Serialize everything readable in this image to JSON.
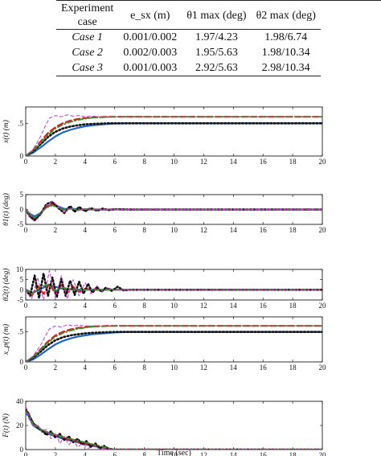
{
  "table": {
    "headers": [
      [
        "Experiment",
        "case"
      ],
      [
        "e_sx (m)"
      ],
      [
        "θ1 max (deg)"
      ],
      [
        "θ2 max (deg)"
      ]
    ],
    "rows": [
      {
        "case": "Case 1",
        "esx": "0.001/0.002",
        "t1": "1.97/4.23",
        "t2": "1.98/6.74"
      },
      {
        "case": "Case 2",
        "esx": "0.002/0.003",
        "t1": "1.95/5.63",
        "t2": "1.98/10.34"
      },
      {
        "case": "Case 3",
        "esx": "0.001/0.003",
        "t1": "2.92/5.63",
        "t2": "2.98/10.34"
      }
    ]
  },
  "chart_data": {
    "type": "line",
    "xlabel": "Time (sec)",
    "xlim": [
      0,
      20
    ],
    "xticks": [
      0,
      2,
      4,
      6,
      8,
      10,
      12,
      14,
      16,
      18,
      20
    ],
    "series_styles": [
      {
        "color": "#1f66c9",
        "dash": "solid",
        "width": 2.2
      },
      {
        "color": "#d81b1b",
        "dash": "7,4",
        "width": 2.2
      },
      {
        "color": "#111111",
        "dash": "1.6,2.8",
        "width": 2.6
      },
      {
        "color": "#3a8f2c",
        "dash": "6,3,1.5,3",
        "width": 1.8
      },
      {
        "color": "#c53cc5",
        "dash": "4,3",
        "width": 1.0
      }
    ],
    "subplots": [
      {
        "ylabel": "x(t) (m)",
        "ylim": [
          0,
          0.75
        ],
        "yticks": [
          0,
          0.5
        ],
        "series": [
          {
            "x": [
              0,
              0.5,
              1,
              1.5,
              2,
              2.5,
              3,
              3.5,
              4,
              4.5,
              5,
              5.5,
              6,
              7,
              8,
              20
            ],
            "y": [
              0,
              0.05,
              0.13,
              0.22,
              0.3,
              0.36,
              0.4,
              0.43,
              0.455,
              0.47,
              0.48,
              0.49,
              0.495,
              0.5,
              0.5,
              0.5
            ]
          },
          {
            "x": [
              0,
              0.5,
              1,
              1.5,
              2,
              2.5,
              3,
              3.5,
              4,
              4.5,
              5,
              5.5,
              6,
              7,
              8,
              20
            ],
            "y": [
              0,
              0.09,
              0.22,
              0.35,
              0.44,
              0.5,
              0.54,
              0.565,
              0.58,
              0.59,
              0.595,
              0.6,
              0.6,
              0.6,
              0.6,
              0.6
            ]
          },
          {
            "x": [
              0,
              0.5,
              1,
              1.5,
              2,
              2.5,
              3,
              3.5,
              4,
              4.5,
              5,
              5.5,
              6,
              7,
              8,
              20
            ],
            "y": [
              0,
              0.07,
              0.18,
              0.29,
              0.37,
              0.42,
              0.45,
              0.47,
              0.485,
              0.49,
              0.495,
              0.5,
              0.5,
              0.5,
              0.5,
              0.5
            ]
          },
          {
            "x": [
              0,
              0.5,
              1,
              1.5,
              2,
              2.5,
              3,
              3.5,
              4,
              4.5,
              5,
              5.5,
              6,
              7,
              8,
              20
            ],
            "y": [
              0,
              0.08,
              0.2,
              0.32,
              0.42,
              0.48,
              0.52,
              0.55,
              0.57,
              0.585,
              0.59,
              0.595,
              0.6,
              0.6,
              0.6,
              0.6
            ]
          },
          {
            "x": [
              0,
              0.5,
              1,
              1.3,
              1.6,
              2,
              2.4,
              2.8,
              3.2,
              3.6,
              4,
              4.5,
              5,
              6,
              7,
              20
            ],
            "y": [
              0,
              0.1,
              0.3,
              0.45,
              0.58,
              0.62,
              0.6,
              0.63,
              0.61,
              0.62,
              0.6,
              0.61,
              0.6,
              0.6,
              0.6,
              0.6
            ]
          }
        ]
      },
      {
        "ylabel": "θ1(t) (deg)",
        "ylim": [
          -5,
          5
        ],
        "yticks": [
          -5,
          0,
          5
        ],
        "series": [
          {
            "x": [
              0,
              0.3,
              0.6,
              1,
              1.4,
              1.8,
              2.2,
              2.6,
              3,
              3.5,
              4,
              5,
              6,
              20
            ],
            "y": [
              0,
              -1.5,
              -2.3,
              -1.2,
              0.8,
              1.8,
              1.0,
              0.2,
              0.3,
              0.1,
              0,
              0,
              0,
              0
            ]
          },
          {
            "x": [
              0,
              0.3,
              0.6,
              1,
              1.4,
              1.8,
              2.2,
              2.6,
              3,
              3.5,
              4,
              5,
              6,
              20
            ],
            "y": [
              0,
              -2.0,
              -3.2,
              -1.5,
              1.0,
              2.0,
              0.8,
              -0.4,
              0.5,
              -0.2,
              0.1,
              0,
              0,
              0
            ]
          },
          {
            "x": [
              0,
              0.3,
              0.6,
              1,
              1.4,
              1.8,
              2.2,
              2.6,
              3,
              3.3,
              3.6,
              4,
              4.4,
              4.8,
              5.2,
              5.6,
              6,
              7,
              20
            ],
            "y": [
              0,
              -2.5,
              -3.6,
              -1.5,
              1.8,
              2.6,
              0.5,
              -1.2,
              1.2,
              -0.8,
              0.9,
              -0.6,
              0.5,
              -0.4,
              0.3,
              -0.2,
              0.1,
              0,
              0
            ]
          },
          {
            "x": [
              0,
              0.3,
              0.6,
              1,
              1.4,
              1.8,
              2.2,
              2.6,
              3,
              3.5,
              4,
              5,
              6,
              20
            ],
            "y": [
              0,
              -1.8,
              -2.8,
              -1.2,
              0.6,
              1.4,
              0.6,
              -0.2,
              0.3,
              0,
              0.1,
              0,
              0,
              0
            ]
          },
          {
            "x": [
              0,
              0.3,
              0.6,
              1,
              1.4,
              1.8,
              2.2,
              2.6,
              3,
              3.5,
              4,
              5,
              6,
              20
            ],
            "y": [
              0,
              -2.8,
              -4.0,
              -2.0,
              1.5,
              2.8,
              1.0,
              -1.0,
              0.6,
              -0.4,
              0.2,
              0,
              0,
              0
            ]
          }
        ]
      },
      {
        "ylabel": "θ2(t) (deg)",
        "ylim": [
          -5,
          10
        ],
        "yticks": [
          -5,
          0,
          5,
          10
        ],
        "series": [
          {
            "x": [
              0,
              0.5,
              1,
              1.5,
              2,
              2.5,
              3,
              3.5,
              4,
              5,
              6,
              20
            ],
            "y": [
              0,
              -1.5,
              0.5,
              2,
              1.5,
              0.5,
              0.2,
              0.1,
              0,
              0,
              0,
              0
            ]
          },
          {
            "x": [
              0,
              0.4,
              0.8,
              1.2,
              1.6,
              2,
              2.4,
              2.8,
              3.2,
              3.6,
              4,
              4.5,
              5,
              6,
              20
            ],
            "y": [
              0,
              -3,
              2,
              -2,
              3,
              -2,
              2.5,
              -1.5,
              1.5,
              -1,
              0.5,
              0.2,
              0,
              0,
              0
            ]
          },
          {
            "x": [
              0,
              0.3,
              0.6,
              0.9,
              1.2,
              1.5,
              1.8,
              2.1,
              2.4,
              2.7,
              3.0,
              3.3,
              3.6,
              3.9,
              4.2,
              4.5,
              4.8,
              5.1,
              5.4,
              5.8,
              6.2,
              6.6,
              7,
              20
            ],
            "y": [
              0,
              -3,
              7,
              -4,
              8,
              -3,
              6,
              -3.5,
              5.5,
              -3,
              4.5,
              -2.5,
              4,
              -2,
              3,
              -1.5,
              1.5,
              -1,
              1,
              -0.5,
              1.5,
              -0.3,
              0,
              0
            ]
          },
          {
            "x": [
              0,
              0.5,
              1,
              1.5,
              2,
              2.5,
              3,
              3.5,
              4,
              5,
              6,
              20
            ],
            "y": [
              0,
              -2,
              1.5,
              2.5,
              -0.5,
              1,
              0.4,
              0.2,
              0.1,
              0,
              0,
              0
            ]
          },
          {
            "x": [
              0,
              0.4,
              0.8,
              1.2,
              1.6,
              2,
              2.4,
              2.8,
              3.2,
              3.6,
              4,
              4.4,
              4.8,
              5.2,
              5.6,
              6,
              7,
              20
            ],
            "y": [
              0,
              -4.5,
              6,
              -5,
              9.5,
              -4,
              7,
              -4.5,
              5,
              -3,
              3.5,
              -2,
              2,
              -1,
              1,
              -0.3,
              0,
              0
            ]
          }
        ]
      },
      {
        "ylabel": "x_p(t) (m)",
        "ylim": [
          0,
          0.75
        ],
        "yticks": [
          0,
          0.5
        ],
        "series": [
          {
            "x": [
              0,
              0.5,
              1,
              1.5,
              2,
              2.5,
              3,
              3.5,
              4,
              4.5,
              5,
              5.5,
              6,
              7,
              8,
              20
            ],
            "y": [
              0,
              0.04,
              0.12,
              0.21,
              0.29,
              0.35,
              0.39,
              0.42,
              0.44,
              0.46,
              0.47,
              0.48,
              0.49,
              0.5,
              0.5,
              0.5
            ]
          },
          {
            "x": [
              0,
              0.5,
              1,
              1.5,
              2,
              2.5,
              3,
              3.5,
              4,
              4.5,
              5,
              5.5,
              6,
              7,
              8,
              20
            ],
            "y": [
              0,
              0.08,
              0.21,
              0.34,
              0.44,
              0.5,
              0.54,
              0.565,
              0.58,
              0.59,
              0.595,
              0.6,
              0.6,
              0.6,
              0.6,
              0.6
            ]
          },
          {
            "x": [
              0,
              0.5,
              1,
              1.5,
              2,
              2.5,
              3,
              3.5,
              4,
              4.5,
              5,
              5.5,
              6,
              7,
              8,
              20
            ],
            "y": [
              0,
              0.07,
              0.17,
              0.28,
              0.36,
              0.41,
              0.44,
              0.46,
              0.475,
              0.485,
              0.49,
              0.495,
              0.5,
              0.5,
              0.5,
              0.5
            ]
          },
          {
            "x": [
              0,
              0.5,
              1,
              1.5,
              2,
              2.5,
              3,
              3.5,
              4,
              4.5,
              5,
              5.5,
              6,
              7,
              8,
              20
            ],
            "y": [
              0,
              0.08,
              0.2,
              0.32,
              0.42,
              0.48,
              0.52,
              0.55,
              0.57,
              0.585,
              0.59,
              0.595,
              0.6,
              0.6,
              0.6,
              0.6
            ]
          },
          {
            "x": [
              0,
              0.5,
              1,
              1.3,
              1.6,
              2,
              2.4,
              2.8,
              3.2,
              3.6,
              4,
              4.5,
              5,
              6,
              7,
              20
            ],
            "y": [
              0,
              0.1,
              0.28,
              0.42,
              0.55,
              0.6,
              0.58,
              0.62,
              0.6,
              0.61,
              0.6,
              0.6,
              0.6,
              0.6,
              0.6,
              0.6
            ]
          }
        ]
      },
      {
        "ylabel": "F(t) (N)",
        "ylim": [
          0,
          40
        ],
        "yticks": [
          0,
          20,
          40
        ],
        "series": [
          {
            "x": [
              0,
              0.2,
              0.5,
              1,
              1.5,
              2,
              2.5,
              3,
              3.5,
              4,
              4.5,
              5,
              6,
              20
            ],
            "y": [
              30,
              28,
              20,
              16,
              13,
              11,
              9,
              7.5,
              6,
              4.5,
              3,
              2,
              0,
              0
            ]
          },
          {
            "x": [
              0,
              0.2,
              0.5,
              1,
              1.5,
              2,
              2.5,
              3,
              3.5,
              4,
              4.5,
              5,
              5.5,
              6,
              20
            ],
            "y": [
              32,
              30,
              22,
              17,
              14,
              12,
              10,
              8,
              6.5,
              5,
              4,
              2.5,
              1,
              0,
              0
            ]
          },
          {
            "x": [
              0,
              0.2,
              0.5,
              0.8,
              1.1,
              1.4,
              1.7,
              2,
              2.3,
              2.6,
              2.9,
              3.2,
              3.5,
              3.8,
              4.1,
              4.4,
              4.7,
              5,
              5.3,
              5.6,
              6,
              20
            ],
            "y": [
              34,
              29,
              22,
              18,
              16,
              12,
              15,
              10,
              13,
              8,
              11,
              6,
              9,
              4,
              7,
              2,
              5,
              1,
              3,
              0.5,
              0,
              0
            ]
          },
          {
            "x": [
              0,
              0.2,
              0.5,
              1,
              1.5,
              2,
              2.5,
              3,
              3.5,
              4,
              4.5,
              5,
              5.5,
              6,
              20
            ],
            "y": [
              31,
              29,
              21,
              17,
              14,
              12,
              10.5,
              9,
              7.5,
              6,
              4.5,
              3,
              1.5,
              0,
              0
            ]
          },
          {
            "x": [
              0,
              0.2,
              0.5,
              0.8,
              1.1,
              1.4,
              1.7,
              2,
              2.3,
              2.6,
              2.9,
              3.2,
              3.5,
              3.8,
              4.2,
              4.6,
              5,
              5.5,
              6,
              20
            ],
            "y": [
              36,
              26,
              19,
              21,
              14,
              17,
              9,
              14,
              5,
              11,
              4,
              8,
              2,
              5,
              1,
              3,
              0.5,
              0.2,
              0,
              0
            ]
          }
        ]
      }
    ]
  }
}
